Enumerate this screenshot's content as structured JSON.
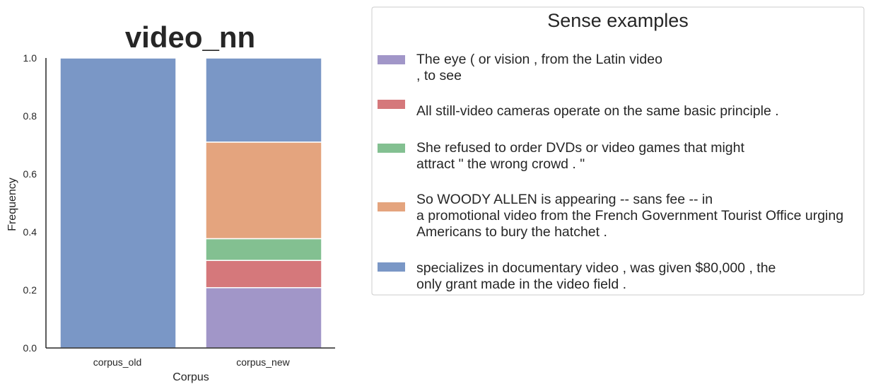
{
  "chart_data": {
    "type": "bar",
    "stacked": true,
    "title": "video_nn",
    "xlabel": "Corpus",
    "ylabel": "Frequency",
    "ylim": [
      0,
      1.0
    ],
    "yticks": [
      "0.0",
      "0.2",
      "0.4",
      "0.6",
      "0.8",
      "1.0"
    ],
    "categories": [
      "corpus_old",
      "corpus_new"
    ],
    "series": [
      {
        "name": "The eye ( or vision , from the Latin video\n, to see",
        "color": "#a196c8",
        "values": [
          0.0,
          0.208
        ]
      },
      {
        "name": "All still-video cameras operate on the same basic principle .",
        "color": "#d5787b",
        "values": [
          0.0,
          0.094
        ]
      },
      {
        "name": "She refused to order DVDs or video games that might\nattract \" the wrong crowd . \"",
        "color": "#83c091",
        "values": [
          0.0,
          0.075
        ]
      },
      {
        "name": "So WOODY ALLEN is appearing -- sans fee -- in\na promotional video from the French Government Tourist Office urging\nAmericans to bury the hatchet .",
        "color": "#e4a47e",
        "values": [
          0.0,
          0.333
        ]
      },
      {
        "name": "specializes in documentary video , was given $80,000 , the\nonly grant made in the video field .",
        "color": "#7a97c6",
        "values": [
          1.0,
          0.29
        ]
      }
    ],
    "legend": {
      "title": "Sense examples",
      "placement": "outside-right"
    },
    "grid": false
  }
}
